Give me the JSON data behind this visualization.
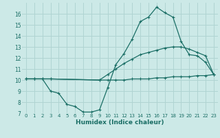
{
  "xlabel": "Humidex (Indice chaleur)",
  "xlim": [
    -0.5,
    23.5
  ],
  "ylim": [
    7,
    17
  ],
  "yticks": [
    7,
    8,
    9,
    10,
    11,
    12,
    13,
    14,
    15,
    16
  ],
  "xticks": [
    0,
    1,
    2,
    3,
    4,
    5,
    6,
    7,
    8,
    9,
    10,
    11,
    12,
    13,
    14,
    15,
    16,
    17,
    18,
    19,
    20,
    21,
    22,
    23
  ],
  "bg_color": "#cce9e7",
  "grid_color": "#b0d4d2",
  "line_color": "#1a6e65",
  "line1_x": [
    0,
    1,
    2,
    3,
    4,
    5,
    6,
    7,
    8,
    9,
    10,
    11,
    12,
    13,
    14,
    15,
    16,
    17,
    18,
    19,
    20,
    21,
    22,
    23
  ],
  "line1_y": [
    10.1,
    10.1,
    10.1,
    9.0,
    8.8,
    7.8,
    7.6,
    7.1,
    7.1,
    7.3,
    9.3,
    11.4,
    12.4,
    13.7,
    15.3,
    15.7,
    16.6,
    16.1,
    15.7,
    13.5,
    12.3,
    12.2,
    11.6,
    10.5
  ],
  "line2_x": [
    0,
    1,
    2,
    3,
    9,
    10,
    11,
    12,
    13,
    14,
    15,
    16,
    17,
    18,
    19,
    20,
    21,
    22,
    23
  ],
  "line2_y": [
    10.1,
    10.1,
    10.1,
    10.1,
    10.0,
    10.5,
    11.0,
    11.5,
    11.9,
    12.3,
    12.5,
    12.7,
    12.9,
    13.0,
    13.0,
    12.8,
    12.5,
    12.2,
    10.5
  ],
  "line3_x": [
    0,
    1,
    2,
    3,
    9,
    10,
    11,
    12,
    13,
    14,
    15,
    16,
    17,
    18,
    19,
    20,
    21,
    22,
    23
  ],
  "line3_y": [
    10.1,
    10.1,
    10.1,
    10.1,
    10.0,
    10.0,
    10.0,
    10.0,
    10.1,
    10.1,
    10.1,
    10.2,
    10.2,
    10.3,
    10.3,
    10.3,
    10.4,
    10.4,
    10.5
  ]
}
